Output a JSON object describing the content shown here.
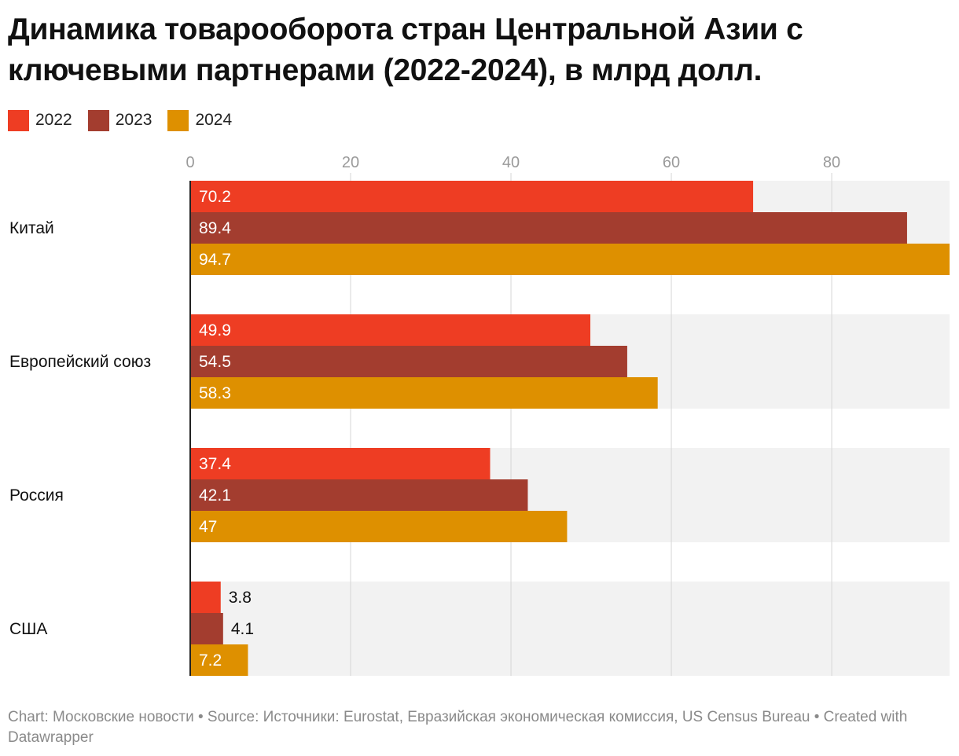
{
  "title": "Динамика товарооборота стран Центральной Азии с ключевыми партнерами (2022-2024), в млрд долл.",
  "source_text": "Chart: Московские новости • Source: Источники: Eurostat, Евразийская экономическая комиссия, US Census Bureau • Created with Datawrapper",
  "chart_data": {
    "type": "bar",
    "orientation": "horizontal",
    "title": "Динамика товарооборота стран Центральной Азии с ключевыми партнерами (2022-2024), в млрд долл.",
    "categories": [
      "Китай",
      "Европейский союз",
      "Россия",
      "США"
    ],
    "series": [
      {
        "name": "2022",
        "color": "#ee3d23",
        "values": [
          70.2,
          49.9,
          37.4,
          3.8
        ]
      },
      {
        "name": "2023",
        "color": "#a33d2f",
        "values": [
          89.4,
          54.5,
          42.1,
          4.1
        ]
      },
      {
        "name": "2024",
        "color": "#de9000",
        "values": [
          94.7,
          58.3,
          47,
          7.2
        ]
      }
    ],
    "value_labels": [
      [
        "70.2",
        "89.4",
        "94.7"
      ],
      [
        "49.9",
        "54.5",
        "58.3"
      ],
      [
        "37.4",
        "42.1",
        "47"
      ],
      [
        "3.8",
        "4.1",
        "7.2"
      ]
    ],
    "x_ticks": [
      0,
      20,
      40,
      60,
      80
    ],
    "x_tick_labels": [
      "0",
      "20",
      "40",
      "60",
      "80"
    ],
    "xlim": [
      0,
      94.7
    ],
    "xlabel": "",
    "ylabel": "",
    "grid": true,
    "legend": "top-left"
  }
}
